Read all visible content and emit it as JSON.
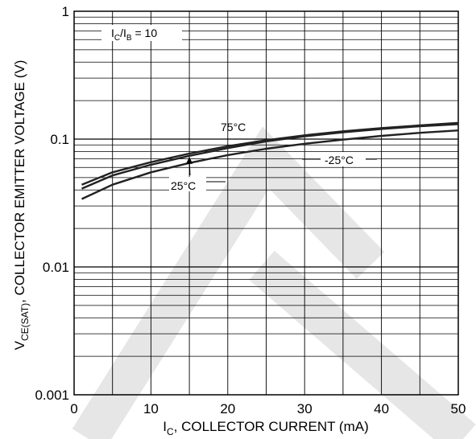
{
  "chart_data": {
    "type": "line",
    "title": "",
    "xlabel": {
      "prefix": "I",
      "sub": "C",
      "suffix": ", COLLECTOR CURRENT (mA)"
    },
    "ylabel": {
      "prefix": "V",
      "sub": "CE(SAT)",
      "suffix": ", COLLECTOR EMITTER VOLTAGE (V)"
    },
    "xlim": [
      0,
      50
    ],
    "ylim": [
      0.001,
      1
    ],
    "yscale": "log",
    "grid": true,
    "xticks": [
      0,
      10,
      20,
      30,
      40,
      50
    ],
    "xtick_labels": [
      "0",
      "10",
      "20",
      "30",
      "40",
      "50"
    ],
    "yticks": [
      0.001,
      0.01,
      0.1,
      1
    ],
    "ytick_labels": [
      "0.001",
      "0.01",
      "0.1",
      "1"
    ],
    "condition": {
      "prefix": "I",
      "sub1": "C",
      "mid": "/I",
      "sub2": "B",
      "suffix": " = 10"
    },
    "series": [
      {
        "name": "75°C",
        "x": [
          1,
          5,
          10,
          15,
          20,
          25,
          30,
          35,
          40,
          45,
          50
        ],
        "y": [
          0.044,
          0.055,
          0.066,
          0.077,
          0.088,
          0.098,
          0.107,
          0.115,
          0.122,
          0.128,
          0.134
        ]
      },
      {
        "name": "25°C",
        "x": [
          1,
          5,
          10,
          15,
          20,
          25,
          30,
          35,
          40,
          45,
          50
        ],
        "y": [
          0.041,
          0.052,
          0.063,
          0.074,
          0.085,
          0.096,
          0.105,
          0.113,
          0.12,
          0.126,
          0.131
        ]
      },
      {
        "name": "-25°C",
        "x": [
          1,
          5,
          10,
          15,
          20,
          25,
          30,
          35,
          40,
          45,
          50
        ],
        "y": [
          0.034,
          0.044,
          0.055,
          0.065,
          0.075,
          0.084,
          0.092,
          0.099,
          0.106,
          0.112,
          0.117
        ]
      }
    ],
    "annotations": [
      {
        "text": "75°C",
        "series": 0
      },
      {
        "text": "25°C",
        "series": 1
      },
      {
        "text": "-25°C",
        "series": 2
      }
    ],
    "watermark_color": "#e6e6e6",
    "line_color": "#222222"
  }
}
